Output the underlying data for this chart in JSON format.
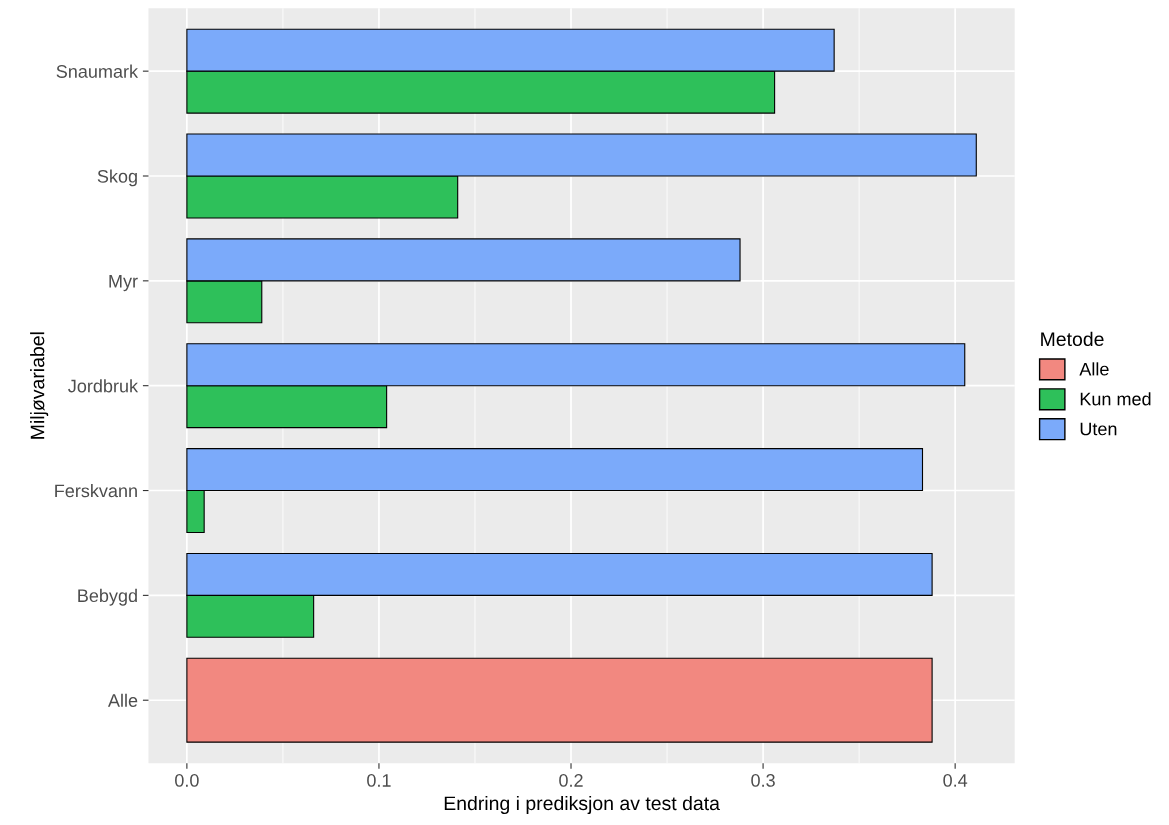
{
  "chart_data": {
    "type": "bar",
    "orientation": "horizontal",
    "xlabel": "Endring i prediksjon av test data",
    "ylabel": "Miljøvariabel",
    "legend_title": "Metode",
    "legend": "right",
    "grid": true,
    "categories": [
      "Snaumark",
      "Skog",
      "Myr",
      "Jordbruk",
      "Ferskvann",
      "Bebygd",
      "Alle"
    ],
    "series": [
      {
        "name": "Alle",
        "color": "#f28880",
        "values": [
          null,
          null,
          null,
          null,
          null,
          null,
          0.388
        ]
      },
      {
        "name": "Kun med",
        "color": "#2ec05a",
        "values": [
          0.306,
          0.141,
          0.039,
          0.104,
          0.009,
          0.066,
          null
        ]
      },
      {
        "name": "Uten",
        "color": "#7baafa",
        "values": [
          0.337,
          0.411,
          0.288,
          0.405,
          0.383,
          0.388,
          null
        ]
      }
    ],
    "xlim": [
      -0.02,
      0.431
    ],
    "xticks": [
      {
        "value": 0,
        "label": "0.0"
      },
      0.1,
      0.2,
      0.3,
      0.4
    ]
  }
}
